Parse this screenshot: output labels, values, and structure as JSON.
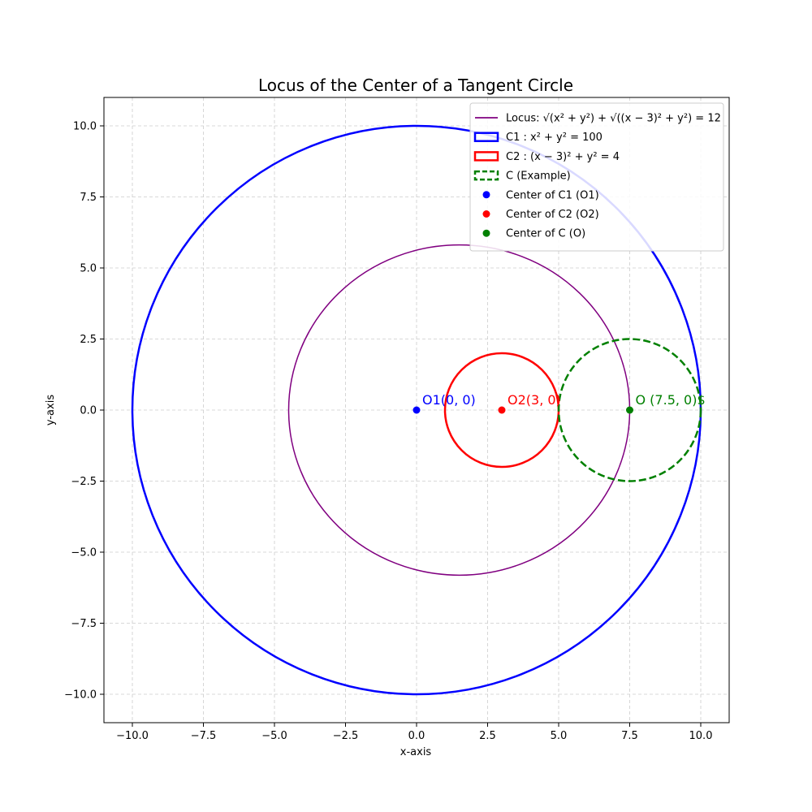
{
  "chart_data": {
    "type": "line",
    "title": "Locus of the Center of a Tangent Circle",
    "xlabel": "x-axis",
    "ylabel": "y-axis",
    "xlim": [
      -11,
      11
    ],
    "ylim": [
      -11,
      11
    ],
    "xticks": [
      -10.0,
      -7.5,
      -5.0,
      -2.5,
      0.0,
      2.5,
      5.0,
      7.5,
      10.0
    ],
    "yticks": [
      -10.0,
      -7.5,
      -5.0,
      -2.5,
      0.0,
      2.5,
      5.0,
      7.5,
      10.0
    ],
    "xtick_labels": [
      "−10.0",
      "−7.5",
      "−5.0",
      "−2.5",
      "0.0",
      "2.5",
      "5.0",
      "7.5",
      "10.0"
    ],
    "ytick_labels": [
      "−10.0",
      "−7.5",
      "−5.0",
      "−2.5",
      "0.0",
      "2.5",
      "5.0",
      "7.5",
      "10.0"
    ],
    "grid": true,
    "legend_position": "top-right",
    "ellipses": [
      {
        "key": "locus",
        "cx": 1.5,
        "cy": 0,
        "rx": 6,
        "ry": 5.8095,
        "color": "#800080",
        "width": 1.5,
        "dashed": false
      },
      {
        "key": "c1",
        "cx": 0,
        "cy": 0,
        "rx": 10,
        "ry": 10,
        "color": "#0000ff",
        "width": 2.5,
        "dashed": false
      },
      {
        "key": "c2",
        "cx": 3,
        "cy": 0,
        "rx": 2,
        "ry": 2,
        "color": "#ff0000",
        "width": 2.5,
        "dashed": false
      },
      {
        "key": "c-example",
        "cx": 7.5,
        "cy": 0,
        "rx": 2.5,
        "ry": 2.5,
        "color": "#008000",
        "width": 2.5,
        "dashed": true
      }
    ],
    "points": [
      {
        "key": "o1",
        "x": 0,
        "y": 0,
        "color": "#0000ff",
        "label": "O1(0, 0)"
      },
      {
        "key": "o2",
        "x": 3,
        "y": 0,
        "color": "#ff0000",
        "label": "O2(3, 0)"
      },
      {
        "key": "o",
        "x": 7.5,
        "y": 0,
        "color": "#008000",
        "label": "O (7.5, 0)$"
      }
    ],
    "legend": [
      {
        "key": "locus",
        "kind": "line",
        "color": "#800080",
        "label": "Locus: √(x² + y²) + √((x − 3)² + y²) = 12"
      },
      {
        "key": "c1",
        "kind": "patch",
        "color": "#0000ff",
        "dashed": false,
        "label": "C1 : x² + y² = 100"
      },
      {
        "key": "c2",
        "kind": "patch",
        "color": "#ff0000",
        "dashed": false,
        "label": "C2 : (x − 3)² + y² = 4"
      },
      {
        "key": "c-example",
        "kind": "patch",
        "color": "#008000",
        "dashed": true,
        "label": "C (Example)"
      },
      {
        "key": "center-c1",
        "kind": "dot",
        "color": "#0000ff",
        "label": "Center of C1 (O1)"
      },
      {
        "key": "center-c2",
        "kind": "dot",
        "color": "#ff0000",
        "label": "Center of C2 (O2)"
      },
      {
        "key": "center-c",
        "kind": "dot",
        "color": "#008000",
        "label": "Center of C (O)"
      }
    ]
  }
}
